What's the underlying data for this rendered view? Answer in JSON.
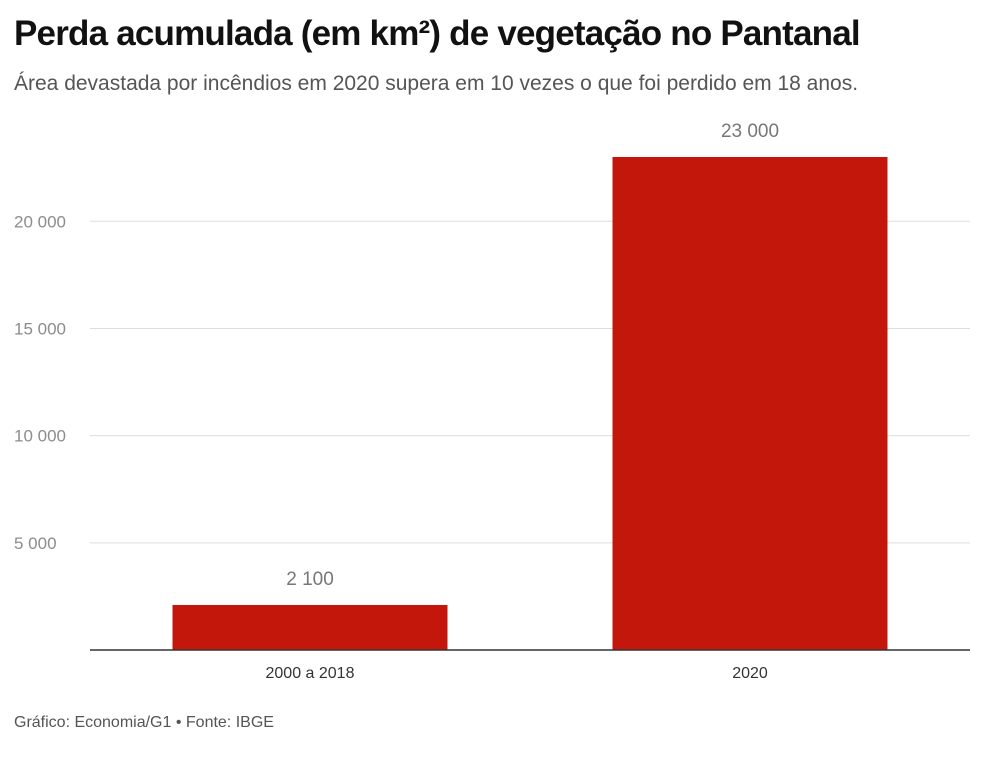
{
  "chart_data": {
    "type": "bar",
    "title": "Perda acumulada (em km²) de vegetação no Pantanal",
    "subtitle": "Área devastada por incêndios em 2020 supera em 10 vezes o que foi perdido em 18 anos.",
    "categories": [
      "2000 a 2018",
      "2020"
    ],
    "values": [
      2100,
      23000
    ],
    "value_labels": [
      "2 100",
      "23 000"
    ],
    "ylim": [
      0,
      23000
    ],
    "yticks": [
      5000,
      10000,
      15000,
      20000
    ],
    "ytick_labels": [
      "5 000",
      "10 000",
      "15 000",
      "20 000"
    ],
    "xlabel": "",
    "ylabel": "",
    "grid": true,
    "bar_color": "#c4170c",
    "footer": "Gráfico: Economia/G1 • Fonte: IBGE"
  }
}
